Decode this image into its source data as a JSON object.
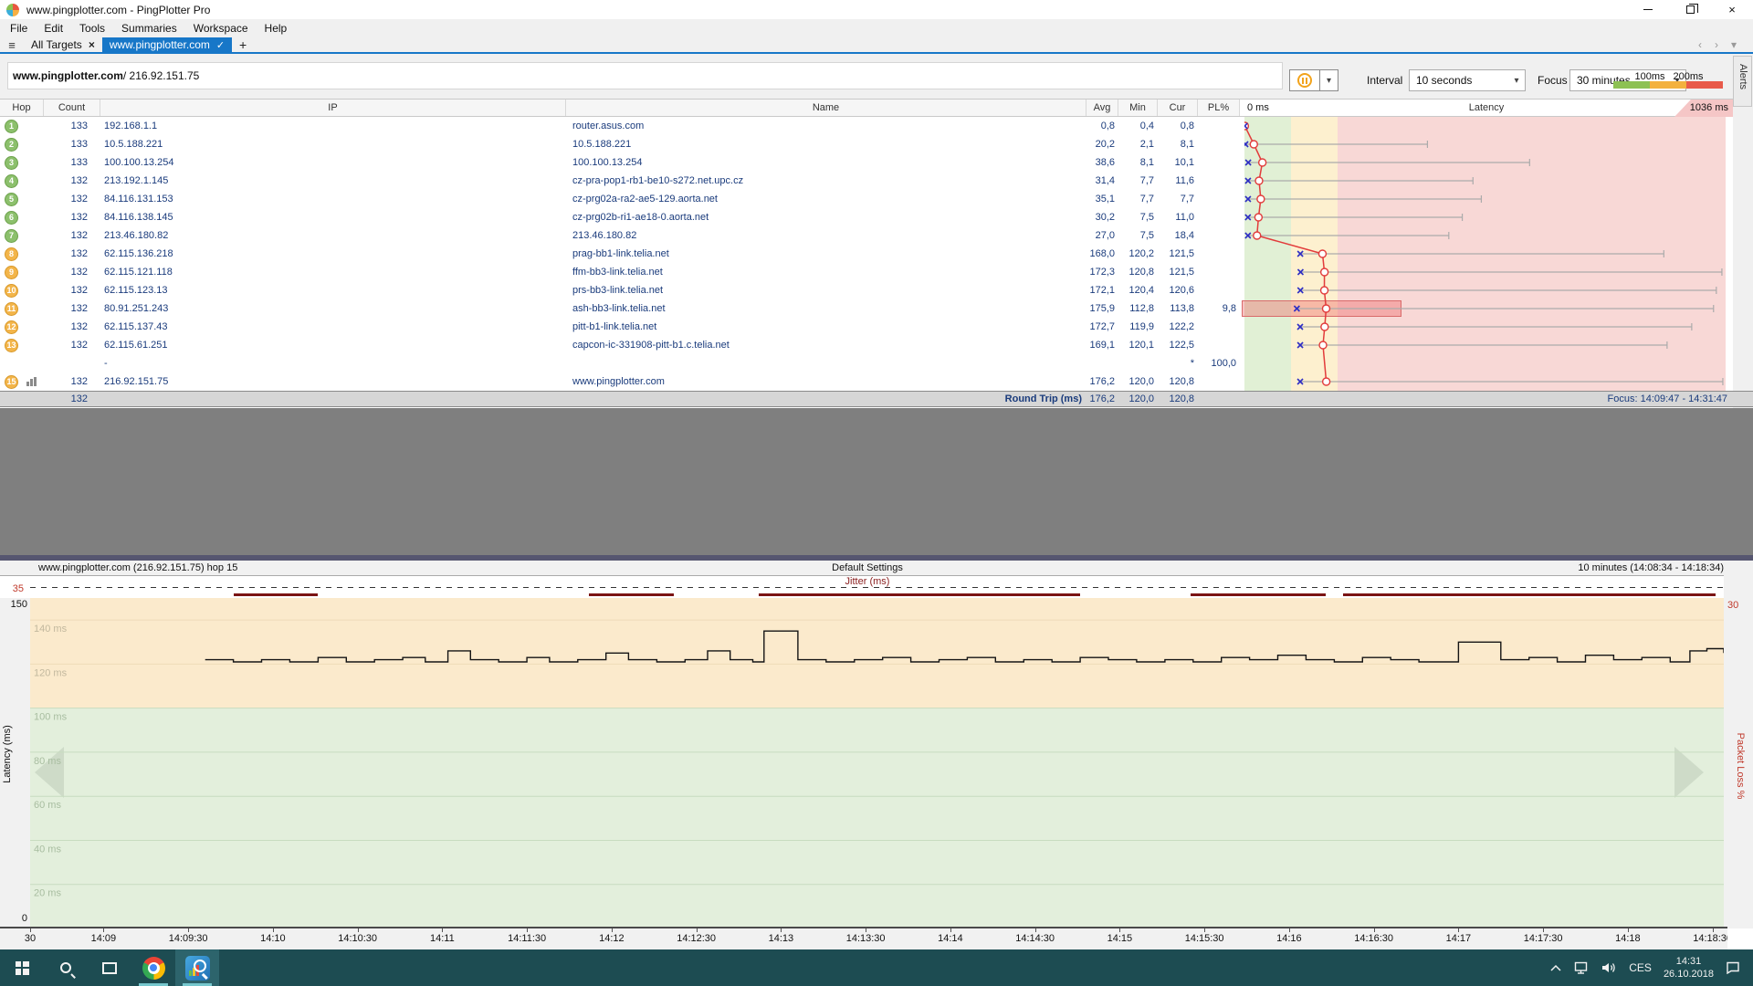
{
  "window": {
    "title": "www.pingplotter.com - PingPlotter Pro"
  },
  "icons": {
    "hamburger": "≡",
    "close_tab": "×",
    "check": "✓",
    "plus": "+",
    "caret": "▾",
    "nav_left": "‹",
    "nav_right": "›"
  },
  "menu": {
    "items": [
      "File",
      "Edit",
      "Tools",
      "Summaries",
      "Workspace",
      "Help"
    ]
  },
  "tabs": {
    "all_targets": "All Targets",
    "active_label": "www.pingplotter.com"
  },
  "target": {
    "host": "www.pingplotter.com",
    "rest": " / 216.92.151.75"
  },
  "controls": {
    "interval_label": "Interval",
    "interval_value": "10 seconds",
    "focus_label": "Focus",
    "focus_value": "30 minutes",
    "legend_labels": [
      "100ms",
      "200ms"
    ],
    "legend_colors": [
      "#8dc153",
      "#f3b13e",
      "#e85a4a"
    ]
  },
  "alerts_label": "Alerts",
  "table": {
    "columns": [
      "Hop",
      "Count",
      "IP",
      "Name",
      "Avg",
      "Min",
      "Cur",
      "PL%"
    ],
    "graph_header": {
      "left": "0 ms",
      "center": "Latency",
      "right": "1036 ms"
    },
    "rows": [
      {
        "hop": "1",
        "badge": "green",
        "count": "133",
        "ip": "192.168.1.1",
        "name": "router.asus.com",
        "avg": "0,8",
        "min": "0,4",
        "cur": "0,8",
        "pl": ""
      },
      {
        "hop": "2",
        "badge": "green",
        "count": "133",
        "ip": "10.5.188.221",
        "name": "10.5.188.221",
        "avg": "20,2",
        "min": "2,1",
        "cur": "8,1",
        "pl": ""
      },
      {
        "hop": "3",
        "badge": "green",
        "count": "133",
        "ip": "100.100.13.254",
        "name": "100.100.13.254",
        "avg": "38,6",
        "min": "8,1",
        "cur": "10,1",
        "pl": ""
      },
      {
        "hop": "4",
        "badge": "green",
        "count": "132",
        "ip": "213.192.1.145",
        "name": "cz-pra-pop1-rb1-be10-s272.net.upc.cz",
        "avg": "31,4",
        "min": "7,7",
        "cur": "11,6",
        "pl": ""
      },
      {
        "hop": "5",
        "badge": "green",
        "count": "132",
        "ip": "84.116.131.153",
        "name": "cz-prg02a-ra2-ae5-129.aorta.net",
        "avg": "35,1",
        "min": "7,7",
        "cur": "7,7",
        "pl": ""
      },
      {
        "hop": "6",
        "badge": "green",
        "count": "132",
        "ip": "84.116.138.145",
        "name": "cz-prg02b-ri1-ae18-0.aorta.net",
        "avg": "30,2",
        "min": "7,5",
        "cur": "11,0",
        "pl": ""
      },
      {
        "hop": "7",
        "badge": "green",
        "count": "132",
        "ip": "213.46.180.82",
        "name": "213.46.180.82",
        "avg": "27,0",
        "min": "7,5",
        "cur": "18,4",
        "pl": ""
      },
      {
        "hop": "8",
        "badge": "orange",
        "count": "132",
        "ip": "62.115.136.218",
        "name": "prag-bb1-link.telia.net",
        "avg": "168,0",
        "min": "120,2",
        "cur": "121,5",
        "pl": ""
      },
      {
        "hop": "9",
        "badge": "orange",
        "count": "132",
        "ip": "62.115.121.118",
        "name": "ffm-bb3-link.telia.net",
        "avg": "172,3",
        "min": "120,8",
        "cur": "121,5",
        "pl": ""
      },
      {
        "hop": "10",
        "badge": "orange",
        "count": "132",
        "ip": "62.115.123.13",
        "name": "prs-bb3-link.telia.net",
        "avg": "172,1",
        "min": "120,4",
        "cur": "120,6",
        "pl": ""
      },
      {
        "hop": "11",
        "badge": "orange",
        "count": "132",
        "ip": "80.91.251.243",
        "name": "ash-bb3-link.telia.net",
        "avg": "175,9",
        "min": "112,8",
        "cur": "113,8",
        "pl": "9,8"
      },
      {
        "hop": "12",
        "badge": "orange",
        "count": "132",
        "ip": "62.115.137.43",
        "name": "pitt-b1-link.telia.net",
        "avg": "172,7",
        "min": "119,9",
        "cur": "122,2",
        "pl": ""
      },
      {
        "hop": "13",
        "badge": "orange",
        "count": "132",
        "ip": "62.115.61.251",
        "name": "capcon-ic-331908-pitt-b1.c.telia.net",
        "avg": "169,1",
        "min": "120,1",
        "cur": "122,5",
        "pl": ""
      },
      {
        "hop": "",
        "badge": "",
        "count": "",
        "ip": "-",
        "name": "",
        "avg": "",
        "min": "",
        "cur": "*",
        "pl": "100,0"
      },
      {
        "hop": "15",
        "badge": "orange",
        "chart_icon": true,
        "count": "132",
        "ip": "216.92.151.75",
        "name": "www.pingplotter.com",
        "avg": "176,2",
        "min": "120,0",
        "cur": "120,8",
        "pl": ""
      }
    ],
    "footer": {
      "count": "132",
      "label": "Round Trip (ms)",
      "avg": "176,2",
      "min": "120,0",
      "cur": "120,8",
      "focus": "Focus: 14:09:47 - 14:31:47"
    }
  },
  "lower": {
    "title_left": "www.pingplotter.com (216.92.151.75) hop 15",
    "title_center": "Default Settings",
    "title_right": "10 minutes (14:08:34 - 14:18:34)"
  },
  "chart_data": [
    {
      "type": "scatter",
      "title": "Latency",
      "x_range_ms": [
        0,
        1036
      ],
      "zone_boundaries_ms": [
        100,
        200
      ],
      "zone_colors": [
        "#e1f0d5",
        "#fdf0cf",
        "#f8d8d6"
      ],
      "rows": [
        {
          "hop": 1,
          "min": 0.4,
          "avg": 0.8,
          "max": 6
        },
        {
          "hop": 2,
          "min": 2.1,
          "avg": 20.2,
          "max": 394
        },
        {
          "hop": 3,
          "min": 8.1,
          "avg": 38.6,
          "max": 614
        },
        {
          "hop": 4,
          "min": 7.7,
          "avg": 31.4,
          "max": 492
        },
        {
          "hop": 5,
          "min": 7.7,
          "avg": 35.1,
          "max": 510
        },
        {
          "hop": 6,
          "min": 7.5,
          "avg": 30.2,
          "max": 469
        },
        {
          "hop": 7,
          "min": 7.5,
          "avg": 27.0,
          "max": 440
        },
        {
          "hop": 8,
          "min": 120.2,
          "avg": 168.0,
          "max": 903
        },
        {
          "hop": 9,
          "min": 120.8,
          "avg": 172.3,
          "max": 1028
        },
        {
          "hop": 10,
          "min": 120.4,
          "avg": 172.1,
          "max": 1016
        },
        {
          "hop": 11,
          "min": 112.8,
          "avg": 175.9,
          "max": 1010,
          "loss_highlight_to_ms": 340
        },
        {
          "hop": 12,
          "min": 119.9,
          "avg": 172.7,
          "max": 963
        },
        {
          "hop": 13,
          "min": 120.1,
          "avg": 169.1,
          "max": 910
        },
        {
          "hop": 14
        },
        {
          "hop": 15,
          "min": 120.0,
          "avg": 176.2,
          "max": 1030
        }
      ]
    },
    {
      "type": "line",
      "ylabel": "Latency (ms)",
      "ylabel_right": "Packet Loss %",
      "ylim": [
        0,
        150
      ],
      "y_top_label": "150",
      "y_bottom_label": "0",
      "right_top_label": "30",
      "gridlines_ms": [
        140,
        120,
        100,
        80,
        60,
        40,
        20
      ],
      "gridline_labels": [
        "140 ms",
        "120 ms",
        "100 ms",
        "80 ms",
        "60 ms",
        "40 ms",
        "20 ms"
      ],
      "jitter": {
        "left_label": "35",
        "label": "Jitter (ms)",
        "segments": [
          [
            0.12,
            0.17
          ],
          [
            0.33,
            0.38
          ],
          [
            0.43,
            0.62
          ],
          [
            0.685,
            0.765
          ],
          [
            0.775,
            0.995
          ]
        ]
      },
      "x_span_seconds": 600,
      "x_ticks": [
        {
          "t": 0,
          "label": "30"
        },
        {
          "t": 26,
          "label": "14:09"
        },
        {
          "t": 56,
          "label": "14:09:30"
        },
        {
          "t": 86,
          "label": "14:10"
        },
        {
          "t": 116,
          "label": "14:10:30"
        },
        {
          "t": 146,
          "label": "14:11"
        },
        {
          "t": 176,
          "label": "14:11:30"
        },
        {
          "t": 206,
          "label": "14:12"
        },
        {
          "t": 236,
          "label": "14:12:30"
        },
        {
          "t": 266,
          "label": "14:13"
        },
        {
          "t": 296,
          "label": "14:13:30"
        },
        {
          "t": 326,
          "label": "14:14"
        },
        {
          "t": 356,
          "label": "14:14:30"
        },
        {
          "t": 386,
          "label": "14:15"
        },
        {
          "t": 416,
          "label": "14:15:30"
        },
        {
          "t": 446,
          "label": "14:16"
        },
        {
          "t": 476,
          "label": "14:16:30"
        },
        {
          "t": 506,
          "label": "14:17"
        },
        {
          "t": 536,
          "label": "14:17:30"
        },
        {
          "t": 566,
          "label": "14:18"
        },
        {
          "t": 596,
          "label": "14:18:30"
        }
      ],
      "points": [
        [
          62,
          122
        ],
        [
          72,
          121
        ],
        [
          82,
          122
        ],
        [
          92,
          121
        ],
        [
          102,
          123
        ],
        [
          112,
          121
        ],
        [
          122,
          122
        ],
        [
          132,
          123
        ],
        [
          140,
          121
        ],
        [
          148,
          126
        ],
        [
          156,
          122
        ],
        [
          166,
          121
        ],
        [
          176,
          123
        ],
        [
          184,
          121
        ],
        [
          194,
          122
        ],
        [
          204,
          125
        ],
        [
          212,
          122
        ],
        [
          222,
          121
        ],
        [
          232,
          122
        ],
        [
          240,
          126
        ],
        [
          248,
          122
        ],
        [
          256,
          121
        ],
        [
          260,
          135
        ],
        [
          268,
          135
        ],
        [
          272,
          122
        ],
        [
          282,
          121
        ],
        [
          292,
          122
        ],
        [
          302,
          123
        ],
        [
          312,
          121
        ],
        [
          322,
          122
        ],
        [
          332,
          123
        ],
        [
          342,
          121
        ],
        [
          352,
          122
        ],
        [
          362,
          121
        ],
        [
          372,
          123
        ],
        [
          382,
          122
        ],
        [
          392,
          121
        ],
        [
          402,
          122
        ],
        [
          412,
          121
        ],
        [
          422,
          123
        ],
        [
          432,
          122
        ],
        [
          442,
          124
        ],
        [
          452,
          122
        ],
        [
          462,
          121
        ],
        [
          472,
          123
        ],
        [
          482,
          122
        ],
        [
          492,
          121
        ],
        [
          506,
          130
        ],
        [
          516,
          130
        ],
        [
          521,
          122
        ],
        [
          531,
          123
        ],
        [
          541,
          121
        ],
        [
          551,
          124
        ],
        [
          561,
          122
        ],
        [
          571,
          123
        ],
        [
          581,
          121
        ],
        [
          588,
          126
        ],
        [
          594,
          127
        ],
        [
          600,
          125
        ]
      ]
    }
  ],
  "taskbar": {
    "lang": "CES",
    "time": "14:31",
    "date": "26.10.2018"
  }
}
